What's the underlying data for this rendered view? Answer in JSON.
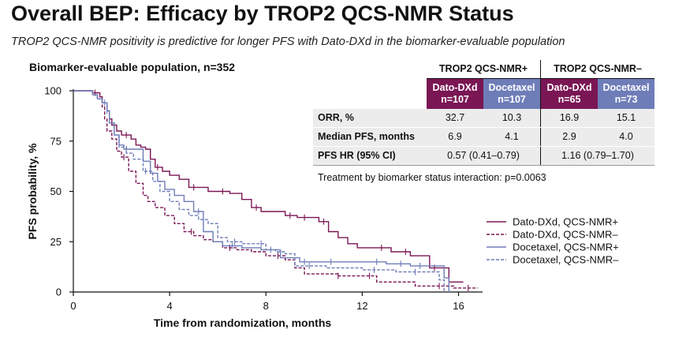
{
  "title": "Overall BEP: Efficacy by TROP2 QCS-NMR Status",
  "subtitle": "TROP2 QCS-NMR positivity is predictive for longer PFS with Dato-DXd in the biomarker-evaluable population",
  "population_label": "Biomarker-evaluable population, n=352",
  "colors": {
    "dato": "#7a1654",
    "doce": "#6e7db8"
  },
  "table": {
    "groups": [
      "TROP2 QCS-NMR+",
      "TROP2 QCS-NMR–"
    ],
    "headers": [
      {
        "line1": "Dato-DXd",
        "line2": "n=107"
      },
      {
        "line1": "Docetaxel",
        "line2": "n=107"
      },
      {
        "line1": "Dato-DXd",
        "line2": "n=65"
      },
      {
        "line1": "Docetaxel",
        "line2": "n=73"
      }
    ],
    "rows": [
      {
        "label": "ORR, %",
        "values": [
          "32.7",
          "10.3",
          "16.9",
          "15.1"
        ]
      },
      {
        "label": "Median PFS, months",
        "values": [
          "6.9",
          "4.1",
          "2.9",
          "4.0"
        ]
      },
      {
        "label": "PFS HR (95% CI)",
        "values": [
          "0.57 (0.41–0.79)",
          "1.16 (0.79–1.70)"
        ]
      }
    ],
    "interaction": "Treatment by biomarker status interaction: p=0.0063"
  },
  "chart_data": {
    "type": "line",
    "title": "",
    "xlabel": "Time from randomization, months",
    "ylabel": "PFS probability, %",
    "xlim": [
      0,
      17
    ],
    "ylim": [
      0,
      100
    ],
    "xticks": [
      0,
      4,
      8,
      12,
      16
    ],
    "yticks": [
      0,
      25,
      50,
      75,
      100
    ],
    "legend_position": "right",
    "series": [
      {
        "name": "Dato-DXd, QCS-NMR+",
        "color": "#7a1654",
        "dashed": false,
        "x": [
          0,
          0.8,
          1.1,
          1.2,
          1.4,
          1.5,
          1.6,
          1.8,
          2.0,
          2.4,
          2.6,
          2.8,
          3.0,
          3.2,
          3.4,
          3.7,
          4.0,
          4.4,
          4.8,
          5.2,
          5.6,
          6.0,
          6.5,
          7.0,
          7.4,
          7.8,
          8.3,
          8.8,
          9.3,
          9.8,
          10.2,
          10.6,
          11.0,
          11.4,
          11.8,
          12.4,
          13.2,
          14.0,
          14.8,
          15.6,
          16.2
        ],
        "y": [
          100,
          99,
          97,
          94,
          90,
          86,
          83,
          80,
          78,
          76,
          73,
          72,
          71,
          66,
          62,
          60,
          58,
          56,
          52,
          52,
          50,
          50,
          49,
          46,
          42,
          40,
          40,
          38,
          37,
          37,
          35,
          30,
          27,
          24,
          22,
          22,
          20,
          18,
          12,
          5,
          5
        ],
        "censor_x": [
          0.9,
          2.2,
          3.5,
          5.0,
          6.2,
          7.6,
          9.0,
          9.6,
          10.4,
          12.8,
          13.8,
          15.0
        ]
      },
      {
        "name": "Dato-DXd, QCS-NMR–",
        "color": "#7a1654",
        "dashed": true,
        "x": [
          0,
          0.8,
          1.0,
          1.2,
          1.3,
          1.4,
          1.6,
          1.8,
          2.0,
          2.3,
          2.6,
          2.9,
          3.1,
          3.4,
          3.8,
          4.2,
          4.6,
          5.0,
          5.4,
          5.8,
          6.2,
          6.8,
          7.4,
          8.0,
          8.8,
          9.2,
          9.6,
          10.2,
          11.0,
          12.0,
          12.6,
          13.4,
          14.2,
          15.0,
          15.8,
          16.8
        ],
        "y": [
          100,
          99,
          96,
          92,
          86,
          80,
          76,
          70,
          67,
          60,
          54,
          48,
          45,
          42,
          38,
          34,
          30,
          28,
          26,
          25,
          22,
          21,
          20,
          18,
          16,
          12,
          9,
          9,
          8,
          8,
          5,
          5,
          3,
          3,
          2,
          2
        ],
        "censor_x": [
          2.1,
          4.9,
          6.5,
          8.5,
          11.0,
          12.3,
          15.2,
          16.4
        ]
      },
      {
        "name": "Docetaxel, QCS-NMR+",
        "color": "#6e7db8",
        "dashed": false,
        "x": [
          0,
          0.8,
          1.0,
          1.2,
          1.4,
          1.5,
          1.7,
          1.9,
          2.1,
          2.5,
          2.9,
          3.2,
          3.5,
          3.8,
          4.2,
          4.6,
          5.0,
          5.4,
          5.8,
          6.2,
          7.0,
          7.8,
          8.6,
          9.4,
          10.0,
          11.0,
          12.0,
          13.0,
          14.0,
          15.0,
          15.4,
          15.6
        ],
        "y": [
          100,
          98,
          96,
          94,
          90,
          84,
          78,
          73,
          71,
          71,
          65,
          59,
          55,
          51,
          48,
          45,
          40,
          30,
          25,
          23,
          22,
          21,
          17,
          15,
          15,
          15,
          15,
          14,
          13,
          13,
          7,
          0
        ],
        "censor_x": [
          1.3,
          2.2,
          5.2,
          6.6,
          8.2,
          9.6,
          10.7,
          12.6,
          13.6,
          14.4
        ]
      },
      {
        "name": "Docetaxel, QCS-NMR–",
        "color": "#6e7db8",
        "dashed": true,
        "x": [
          0,
          0.8,
          1.0,
          1.2,
          1.4,
          1.5,
          1.7,
          1.9,
          2.2,
          2.5,
          2.9,
          3.3,
          3.6,
          4.0,
          4.4,
          4.8,
          5.2,
          5.6,
          6.0,
          6.4,
          7.0,
          8.0,
          8.4,
          8.8,
          9.2,
          10.5,
          12.0,
          13.4,
          14.6,
          15.2,
          15.4
        ],
        "y": [
          100,
          98,
          96,
          94,
          90,
          84,
          78,
          72,
          69,
          66,
          60,
          55,
          50,
          45,
          41,
          38,
          36,
          34,
          27,
          25,
          24,
          21,
          20,
          19,
          13,
          12,
          11,
          10,
          10,
          6,
          0
        ],
        "censor_x": [
          1.4,
          3.0,
          6.7,
          7.8,
          9.8,
          12.5,
          14.2
        ]
      }
    ]
  }
}
